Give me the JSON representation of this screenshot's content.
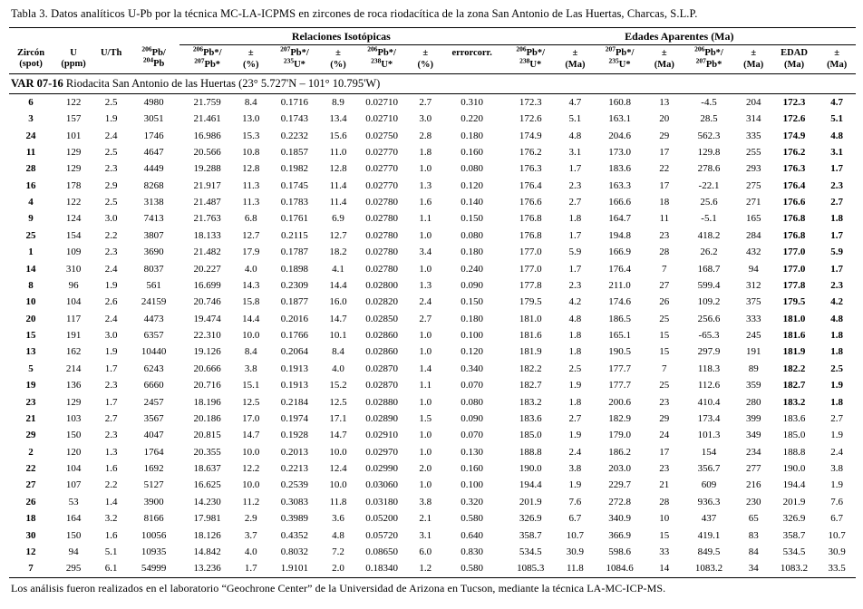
{
  "title": "Tabla 3. Datos analíticos U-Pb por la técnica MC-LA-ICPMS en zircones de roca riodacítica de la zona San Antonio de Las Huertas, Charcas, S.L.P.",
  "table": {
    "groups": {
      "isotopic": "Relaciones Isotópicas",
      "ages": "Edades Aparentes (Ma)"
    },
    "columns": [
      {
        "l1": "Zircón",
        "l2": "(spot)"
      },
      {
        "l1": "U",
        "l2": "(ppm)"
      },
      {
        "l1": "U/Th",
        "l2": ""
      },
      {
        "l1": "206Pb/",
        "l2": "204Pb"
      },
      {
        "l1": "206Pb*/",
        "l2": "207Pb*"
      },
      {
        "l1": "±",
        "l2": "(%)"
      },
      {
        "l1": "207Pb*/",
        "l2": "235U*"
      },
      {
        "l1": "±",
        "l2": "(%)"
      },
      {
        "l1": "206Pb*/",
        "l2": "238U*"
      },
      {
        "l1": "±",
        "l2": "(%)"
      },
      {
        "l1": "errorcorr.",
        "l2": ""
      },
      {
        "l1": "206Pb*/",
        "l2": "238U*"
      },
      {
        "l1": "±",
        "l2": "(Ma)"
      },
      {
        "l1": "207Pb*/",
        "l2": "235U*"
      },
      {
        "l1": "±",
        "l2": "(Ma)"
      },
      {
        "l1": "206Pb*/",
        "l2": "207Pb*"
      },
      {
        "l1": "±",
        "l2": "(Ma)"
      },
      {
        "l1": "EDAD",
        "l2": "(Ma)"
      },
      {
        "l1": "±",
        "l2": "(Ma)"
      }
    ],
    "sample": {
      "code": "VAR 07-16",
      "desc": "Riodacita San Antonio de las Huertas (23° 5.727'N – 101° 10.795'W)"
    },
    "rows": [
      {
        "bold": true,
        "cells": [
          "6",
          "122",
          "2.5",
          "4980",
          "21.759",
          "8.4",
          "0.1716",
          "8.9",
          "0.02710",
          "2.7",
          "0.310",
          "172.3",
          "4.7",
          "160.8",
          "13",
          "-4.5",
          "204",
          "172.3",
          "4.7"
        ]
      },
      {
        "bold": true,
        "cells": [
          "3",
          "157",
          "1.9",
          "3051",
          "21.461",
          "13.0",
          "0.1743",
          "13.4",
          "0.02710",
          "3.0",
          "0.220",
          "172.6",
          "5.1",
          "163.1",
          "20",
          "28.5",
          "314",
          "172.6",
          "5.1"
        ]
      },
      {
        "bold": true,
        "cells": [
          "24",
          "101",
          "2.4",
          "1746",
          "16.986",
          "15.3",
          "0.2232",
          "15.6",
          "0.02750",
          "2.8",
          "0.180",
          "174.9",
          "4.8",
          "204.6",
          "29",
          "562.3",
          "335",
          "174.9",
          "4.8"
        ]
      },
      {
        "bold": true,
        "cells": [
          "11",
          "129",
          "2.5",
          "4647",
          "20.566",
          "10.8",
          "0.1857",
          "11.0",
          "0.02770",
          "1.8",
          "0.160",
          "176.2",
          "3.1",
          "173.0",
          "17",
          "129.8",
          "255",
          "176.2",
          "3.1"
        ]
      },
      {
        "bold": true,
        "cells": [
          "28",
          "129",
          "2.3",
          "4449",
          "19.288",
          "12.8",
          "0.1982",
          "12.8",
          "0.02770",
          "1.0",
          "0.080",
          "176.3",
          "1.7",
          "183.6",
          "22",
          "278.6",
          "293",
          "176.3",
          "1.7"
        ]
      },
      {
        "bold": true,
        "cells": [
          "16",
          "178",
          "2.9",
          "8268",
          "21.917",
          "11.3",
          "0.1745",
          "11.4",
          "0.02770",
          "1.3",
          "0.120",
          "176.4",
          "2.3",
          "163.3",
          "17",
          "-22.1",
          "275",
          "176.4",
          "2.3"
        ]
      },
      {
        "bold": true,
        "cells": [
          "4",
          "122",
          "2.5",
          "3138",
          "21.487",
          "11.3",
          "0.1783",
          "11.4",
          "0.02780",
          "1.6",
          "0.140",
          "176.6",
          "2.7",
          "166.6",
          "18",
          "25.6",
          "271",
          "176.6",
          "2.7"
        ]
      },
      {
        "bold": true,
        "cells": [
          "9",
          "124",
          "3.0",
          "7413",
          "21.763",
          "6.8",
          "0.1761",
          "6.9",
          "0.02780",
          "1.1",
          "0.150",
          "176.8",
          "1.8",
          "164.7",
          "11",
          "-5.1",
          "165",
          "176.8",
          "1.8"
        ]
      },
      {
        "bold": true,
        "cells": [
          "25",
          "154",
          "2.2",
          "3807",
          "18.133",
          "12.7",
          "0.2115",
          "12.7",
          "0.02780",
          "1.0",
          "0.080",
          "176.8",
          "1.7",
          "194.8",
          "23",
          "418.2",
          "284",
          "176.8",
          "1.7"
        ]
      },
      {
        "bold": true,
        "cells": [
          "1",
          "109",
          "2.3",
          "3690",
          "21.482",
          "17.9",
          "0.1787",
          "18.2",
          "0.02780",
          "3.4",
          "0.180",
          "177.0",
          "5.9",
          "166.9",
          "28",
          "26.2",
          "432",
          "177.0",
          "5.9"
        ]
      },
      {
        "bold": true,
        "cells": [
          "14",
          "310",
          "2.4",
          "8037",
          "20.227",
          "4.0",
          "0.1898",
          "4.1",
          "0.02780",
          "1.0",
          "0.240",
          "177.0",
          "1.7",
          "176.4",
          "7",
          "168.7",
          "94",
          "177.0",
          "1.7"
        ]
      },
      {
        "bold": true,
        "cells": [
          "8",
          "96",
          "1.9",
          "561",
          "16.699",
          "14.3",
          "0.2309",
          "14.4",
          "0.02800",
          "1.3",
          "0.090",
          "177.8",
          "2.3",
          "211.0",
          "27",
          "599.4",
          "312",
          "177.8",
          "2.3"
        ]
      },
      {
        "bold": true,
        "cells": [
          "10",
          "104",
          "2.6",
          "24159",
          "20.746",
          "15.8",
          "0.1877",
          "16.0",
          "0.02820",
          "2.4",
          "0.150",
          "179.5",
          "4.2",
          "174.6",
          "26",
          "109.2",
          "375",
          "179.5",
          "4.2"
        ]
      },
      {
        "bold": true,
        "cells": [
          "20",
          "117",
          "2.4",
          "4473",
          "19.474",
          "14.4",
          "0.2016",
          "14.7",
          "0.02850",
          "2.7",
          "0.180",
          "181.0",
          "4.8",
          "186.5",
          "25",
          "256.6",
          "333",
          "181.0",
          "4.8"
        ]
      },
      {
        "bold": true,
        "cells": [
          "15",
          "191",
          "3.0",
          "6357",
          "22.310",
          "10.0",
          "0.1766",
          "10.1",
          "0.02860",
          "1.0",
          "0.100",
          "181.6",
          "1.8",
          "165.1",
          "15",
          "-65.3",
          "245",
          "181.6",
          "1.8"
        ]
      },
      {
        "bold": true,
        "cells": [
          "13",
          "162",
          "1.9",
          "10440",
          "19.126",
          "8.4",
          "0.2064",
          "8.4",
          "0.02860",
          "1.0",
          "0.120",
          "181.9",
          "1.8",
          "190.5",
          "15",
          "297.9",
          "191",
          "181.9",
          "1.8"
        ]
      },
      {
        "bold": true,
        "cells": [
          "5",
          "214",
          "1.7",
          "6243",
          "20.666",
          "3.8",
          "0.1913",
          "4.0",
          "0.02870",
          "1.4",
          "0.340",
          "182.2",
          "2.5",
          "177.7",
          "7",
          "118.3",
          "89",
          "182.2",
          "2.5"
        ]
      },
      {
        "bold": true,
        "cells": [
          "19",
          "136",
          "2.3",
          "6660",
          "20.716",
          "15.1",
          "0.1913",
          "15.2",
          "0.02870",
          "1.1",
          "0.070",
          "182.7",
          "1.9",
          "177.7",
          "25",
          "112.6",
          "359",
          "182.7",
          "1.9"
        ]
      },
      {
        "bold": true,
        "cells": [
          "23",
          "129",
          "1.7",
          "2457",
          "18.196",
          "12.5",
          "0.2184",
          "12.5",
          "0.02880",
          "1.0",
          "0.080",
          "183.2",
          "1.8",
          "200.6",
          "23",
          "410.4",
          "280",
          "183.2",
          "1.8"
        ]
      },
      {
        "bold": false,
        "cells": [
          "21",
          "103",
          "2.7",
          "3567",
          "20.186",
          "17.0",
          "0.1974",
          "17.1",
          "0.02890",
          "1.5",
          "0.090",
          "183.6",
          "2.7",
          "182.9",
          "29",
          "173.4",
          "399",
          "183.6",
          "2.7"
        ]
      },
      {
        "bold": false,
        "cells": [
          "29",
          "150",
          "2.3",
          "4047",
          "20.815",
          "14.7",
          "0.1928",
          "14.7",
          "0.02910",
          "1.0",
          "0.070",
          "185.0",
          "1.9",
          "179.0",
          "24",
          "101.3",
          "349",
          "185.0",
          "1.9"
        ]
      },
      {
        "bold": false,
        "cells": [
          "2",
          "120",
          "1.3",
          "1764",
          "20.355",
          "10.0",
          "0.2013",
          "10.0",
          "0.02970",
          "1.0",
          "0.130",
          "188.8",
          "2.4",
          "186.2",
          "17",
          "154",
          "234",
          "188.8",
          "2.4"
        ]
      },
      {
        "bold": false,
        "cells": [
          "22",
          "104",
          "1.6",
          "1692",
          "18.637",
          "12.2",
          "0.2213",
          "12.4",
          "0.02990",
          "2.0",
          "0.160",
          "190.0",
          "3.8",
          "203.0",
          "23",
          "356.7",
          "277",
          "190.0",
          "3.8"
        ]
      },
      {
        "bold": false,
        "cells": [
          "27",
          "107",
          "2.2",
          "5127",
          "16.625",
          "10.0",
          "0.2539",
          "10.0",
          "0.03060",
          "1.0",
          "0.100",
          "194.4",
          "1.9",
          "229.7",
          "21",
          "609",
          "216",
          "194.4",
          "1.9"
        ]
      },
      {
        "bold": false,
        "cells": [
          "26",
          "53",
          "1.4",
          "3900",
          "14.230",
          "11.2",
          "0.3083",
          "11.8",
          "0.03180",
          "3.8",
          "0.320",
          "201.9",
          "7.6",
          "272.8",
          "28",
          "936.3",
          "230",
          "201.9",
          "7.6"
        ]
      },
      {
        "bold": false,
        "cells": [
          "18",
          "164",
          "3.2",
          "8166",
          "17.981",
          "2.9",
          "0.3989",
          "3.6",
          "0.05200",
          "2.1",
          "0.580",
          "326.9",
          "6.7",
          "340.9",
          "10",
          "437",
          "65",
          "326.9",
          "6.7"
        ]
      },
      {
        "bold": false,
        "cells": [
          "30",
          "150",
          "1.6",
          "10056",
          "18.126",
          "3.7",
          "0.4352",
          "4.8",
          "0.05720",
          "3.1",
          "0.640",
          "358.7",
          "10.7",
          "366.9",
          "15",
          "419.1",
          "83",
          "358.7",
          "10.7"
        ]
      },
      {
        "bold": false,
        "cells": [
          "12",
          "94",
          "5.1",
          "10935",
          "14.842",
          "4.0",
          "0.8032",
          "7.2",
          "0.08650",
          "6.0",
          "0.830",
          "534.5",
          "30.9",
          "598.6",
          "33",
          "849.5",
          "84",
          "534.5",
          "30.9"
        ]
      },
      {
        "bold": false,
        "cells": [
          "7",
          "295",
          "6.1",
          "54999",
          "13.236",
          "1.7",
          "1.9101",
          "2.0",
          "0.18340",
          "1.2",
          "0.580",
          "1085.3",
          "11.8",
          "1084.6",
          "14",
          "1083.2",
          "34",
          "1083.2",
          "33.5"
        ]
      }
    ]
  },
  "footnote": "Los análisis fueron realizados en el laboratorio “Geochrone Center” de la Universidad de Arizona en Tucson, mediante la técnica LA-MC-ICP-MS."
}
